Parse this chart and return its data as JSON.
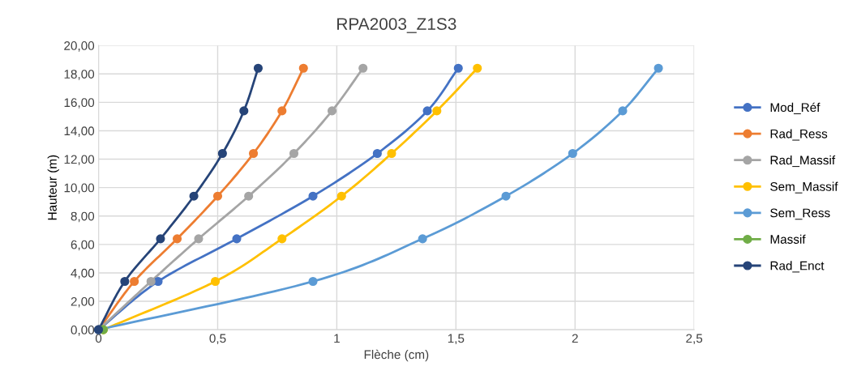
{
  "chart_data": {
    "type": "line",
    "title": "RPA2003_Z1S3",
    "xlabel": "Flèche (cm)",
    "ylabel": "Hauteur (m)",
    "xlim": [
      0,
      2.5
    ],
    "ylim": [
      0,
      20
    ],
    "xticks": [
      0,
      {
        "value": 0.5,
        "label": "0,5"
      },
      1,
      {
        "value": 1.5,
        "label": "1,5"
      },
      2,
      {
        "value": 2.5,
        "label": "2,5"
      }
    ],
    "yticks": [
      {
        "value": 0,
        "label": "0,00"
      },
      {
        "value": 2,
        "label": "2,00"
      },
      {
        "value": 4,
        "label": "4,00"
      },
      {
        "value": 6,
        "label": "6,00"
      },
      {
        "value": 8,
        "label": "8,00"
      },
      {
        "value": 10,
        "label": "10,00"
      },
      {
        "value": 12,
        "label": "12,00"
      },
      {
        "value": 14,
        "label": "14,00"
      },
      {
        "value": 16,
        "label": "16,00"
      },
      {
        "value": 18,
        "label": "18,00"
      },
      {
        "value": 20,
        "label": "20,00"
      }
    ],
    "grid": true,
    "legend": "right",
    "marker": "circle",
    "line_style": "solid",
    "series": [
      {
        "name": "Mod_Réf",
        "color": "#4472c4",
        "x": [
          0,
          0.25,
          0.58,
          0.9,
          1.17,
          1.38,
          1.51
        ],
        "values": [
          0,
          3.4,
          6.4,
          9.4,
          12.4,
          15.4,
          18.4
        ]
      },
      {
        "name": "Rad_Ress",
        "color": "#ed7d31",
        "x": [
          0,
          0.15,
          0.33,
          0.5,
          0.65,
          0.77,
          0.86
        ],
        "values": [
          0,
          3.4,
          6.4,
          9.4,
          12.4,
          15.4,
          18.4
        ]
      },
      {
        "name": "Rad_Massif",
        "color": "#a5a5a5",
        "x": [
          0,
          0.22,
          0.42,
          0.63,
          0.82,
          0.98,
          1.11
        ],
        "values": [
          0,
          3.4,
          6.4,
          9.4,
          12.4,
          15.4,
          18.4
        ]
      },
      {
        "name": "Sem_Massif",
        "color": "#ffc000",
        "x": [
          0.02,
          0.49,
          0.77,
          1.02,
          1.23,
          1.42,
          1.59
        ],
        "values": [
          0,
          3.4,
          6.4,
          9.4,
          12.4,
          15.4,
          18.4
        ]
      },
      {
        "name": "Sem_Ress",
        "color": "#5b9bd5",
        "x": [
          0,
          0.9,
          1.36,
          1.71,
          1.99,
          2.2,
          2.35
        ],
        "values": [
          0,
          3.4,
          6.4,
          9.4,
          12.4,
          15.4,
          18.4
        ]
      },
      {
        "name": "Massif",
        "color": "#70ad47",
        "x": [
          0.02
        ],
        "values": [
          0
        ]
      },
      {
        "name": "Rad_Enct",
        "color": "#264478",
        "x": [
          0,
          0.11,
          0.26,
          0.4,
          0.52,
          0.61,
          0.67
        ],
        "values": [
          0,
          3.4,
          6.4,
          9.4,
          12.4,
          15.4,
          18.4
        ]
      }
    ]
  }
}
